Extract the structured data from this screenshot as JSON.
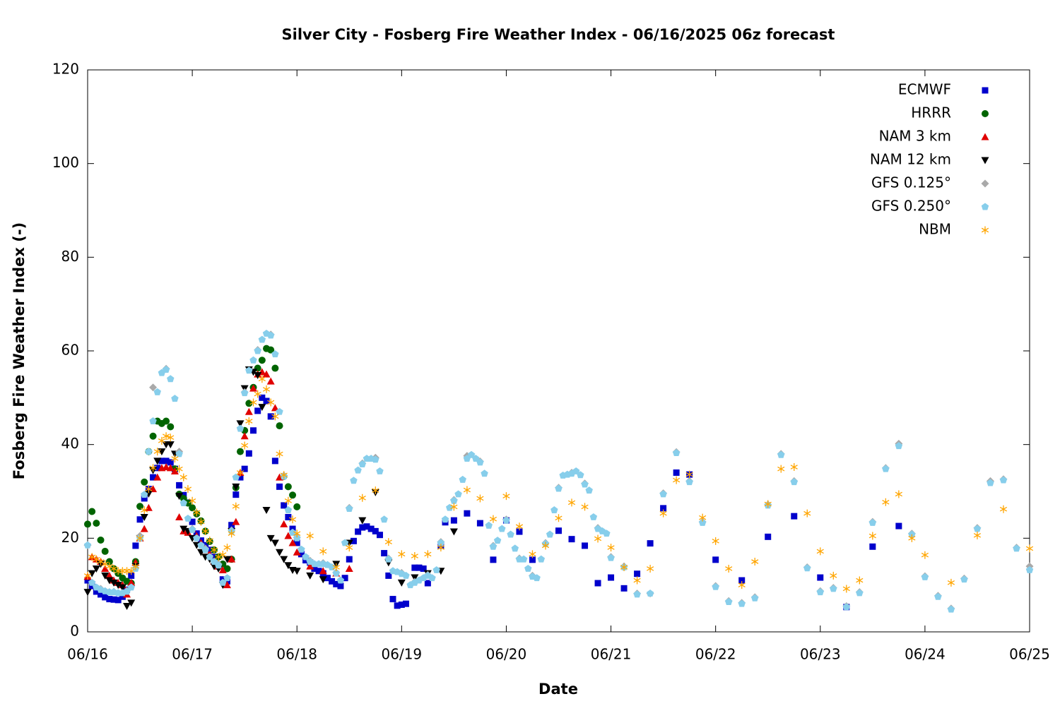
{
  "chart_data": {
    "type": "scatter",
    "title": "Silver City - Fosberg Fire Weather Index - 06/16/2025 06z forecast",
    "x_label": "Date",
    "y_label": "Fosberg Fire Weather Index (-)",
    "xlim": [
      0,
      216
    ],
    "ylim": [
      0,
      120
    ],
    "xticks": [
      {
        "value": 0,
        "label": "06/16"
      },
      {
        "value": 24,
        "label": "06/17"
      },
      {
        "value": 48,
        "label": "06/18"
      },
      {
        "value": 72,
        "label": "06/19"
      },
      {
        "value": 96,
        "label": "06/20"
      },
      {
        "value": 120,
        "label": "06/21"
      },
      {
        "value": 144,
        "label": "06/22"
      },
      {
        "value": 168,
        "label": "06/23"
      },
      {
        "value": 192,
        "label": "06/24"
      },
      {
        "value": 216,
        "label": "06/25"
      }
    ],
    "yticks": [
      0,
      20,
      40,
      60,
      80,
      100,
      120
    ],
    "legend": "top-right",
    "series": [
      {
        "name": "ECMWF",
        "color": "#0000cc",
        "marker": "square",
        "x": [
          0,
          1,
          2,
          3,
          4,
          5,
          6,
          7,
          8,
          9,
          10,
          11,
          12,
          13,
          14,
          15,
          16,
          17,
          18,
          19,
          20,
          21,
          22,
          23,
          24,
          25,
          26,
          27,
          28,
          29,
          30,
          31,
          32,
          33,
          34,
          35,
          36,
          37,
          38,
          39,
          40,
          41,
          42,
          43,
          44,
          45,
          46,
          47,
          48,
          49,
          50,
          51,
          52,
          53,
          54,
          55,
          56,
          57,
          58,
          59,
          60,
          61,
          62,
          63,
          64,
          65,
          66,
          67,
          68,
          69,
          70,
          71,
          72,
          73,
          75,
          76,
          77,
          78,
          81,
          82,
          84,
          87,
          90,
          93,
          96,
          99,
          102,
          108,
          111,
          114,
          117,
          120,
          123,
          126,
          129,
          132,
          135,
          138,
          144,
          150,
          156,
          162,
          168,
          174,
          180,
          186
        ],
        "values": [
          11,
          9.8,
          8.6,
          8,
          7.4,
          7,
          6.9,
          6.8,
          7.5,
          9,
          12,
          18.4,
          24,
          28.5,
          30.5,
          33,
          35,
          36.5,
          36.5,
          36.2,
          34.8,
          31.3,
          29.2,
          27.6,
          23.5,
          21,
          19.5,
          18.5,
          17.5,
          16,
          14,
          11.2,
          10.8,
          22.8,
          29.3,
          33,
          34.8,
          38.1,
          43,
          47.2,
          50,
          49.3,
          46,
          36.5,
          31,
          27,
          24.5,
          22,
          19,
          16.6,
          15.3,
          14.8,
          13.5,
          13,
          12.5,
          11.5,
          10.8,
          10.2,
          9.8,
          11.5,
          15.5,
          19.4,
          21.4,
          22.3,
          22.5,
          22,
          21.5,
          20.7,
          16.8,
          12,
          7,
          5.6,
          5.8,
          6,
          13.7,
          13.7,
          13.5,
          10.4,
          18.4,
          23.4,
          23.8,
          25.3,
          23.2,
          15.4,
          23.8,
          21.4,
          15.4,
          21.6,
          19.8,
          18.4,
          10.4,
          11.6,
          9.3,
          12.4,
          18.9,
          26.4,
          34,
          33.6,
          15.4,
          11,
          20.3,
          24.7,
          11.6,
          5.3,
          18.2,
          22.6
        ]
      },
      {
        "name": "HRRR",
        "color": "#006400",
        "marker": "circle",
        "x": [
          0,
          1,
          2,
          3,
          4,
          5,
          6,
          7,
          8,
          9,
          10,
          11,
          12,
          13,
          14,
          15,
          16,
          17,
          18,
          19,
          20,
          21,
          22,
          23,
          24,
          25,
          26,
          27,
          28,
          29,
          30,
          31,
          32,
          33,
          34,
          35,
          36,
          37,
          38,
          39,
          40,
          41,
          42,
          43,
          44,
          45,
          46,
          47,
          48
        ],
        "values": [
          23,
          25.7,
          23.2,
          19.6,
          17.2,
          15,
          13.5,
          12.5,
          11.5,
          10.8,
          10.4,
          15,
          26.8,
          32,
          38.5,
          41.8,
          45,
          44.5,
          45,
          43.8,
          34.8,
          29.4,
          28.5,
          27.5,
          26.5,
          25.2,
          23.7,
          21.5,
          19.3,
          17.5,
          16,
          14.5,
          13.5,
          15.5,
          30.8,
          38.5,
          43,
          48.8,
          52.2,
          56.3,
          58,
          60.5,
          60.2,
          56.3,
          44,
          33.2,
          31,
          29.2,
          26.7
        ]
      },
      {
        "name": "NAM 3 km",
        "color": "#e00000",
        "marker": "triangle",
        "x": [
          0,
          1,
          2,
          3,
          4,
          5,
          6,
          7,
          8,
          9,
          10,
          11,
          12,
          13,
          14,
          15,
          16,
          17,
          18,
          19,
          20,
          21,
          22,
          23,
          24,
          25,
          26,
          27,
          28,
          29,
          30,
          31,
          32,
          33,
          34,
          35,
          36,
          37,
          38,
          39,
          40,
          41,
          42,
          43,
          44,
          45,
          46,
          47,
          48,
          51,
          54,
          57,
          60
        ],
        "values": [
          11.8,
          16,
          15.5,
          15,
          13.5,
          12,
          11,
          10.5,
          10,
          8,
          10.5,
          14.8,
          20,
          22,
          26.5,
          30.5,
          33,
          35,
          35.2,
          35,
          34.3,
          24.5,
          21.5,
          21.2,
          22,
          20.5,
          19,
          17.5,
          16.5,
          15,
          14,
          13.2,
          10,
          15.5,
          23.5,
          34,
          41.8,
          47,
          52,
          55,
          55.5,
          55,
          53.5,
          47.8,
          33,
          23,
          20.5,
          19,
          17,
          14,
          13,
          12.5,
          13.5
        ]
      },
      {
        "name": "NAM 12 km",
        "color": "#000000",
        "marker": "triangle-down",
        "x": [
          0,
          1,
          2,
          3,
          4,
          5,
          6,
          7,
          8,
          9,
          10,
          11,
          12,
          13,
          14,
          15,
          16,
          17,
          18,
          19,
          20,
          21,
          22,
          23,
          24,
          25,
          26,
          27,
          28,
          29,
          30,
          31,
          32,
          33,
          34,
          35,
          36,
          37,
          38,
          39,
          40,
          41,
          42,
          43,
          44,
          45,
          46,
          47,
          48,
          51,
          54,
          57,
          60,
          63,
          66,
          69,
          72,
          75,
          78,
          81,
          84
        ],
        "values": [
          8.5,
          12.5,
          13.5,
          14.5,
          12,
          11,
          10.5,
          10,
          9.5,
          5.5,
          6.2,
          14,
          20,
          24.5,
          29.5,
          34.5,
          36.5,
          38.5,
          40,
          40,
          38,
          29,
          22,
          21.5,
          20,
          18.5,
          17,
          16,
          15.5,
          14,
          13.5,
          10,
          15.5,
          21.5,
          31,
          44.5,
          52,
          56,
          55.5,
          54.8,
          48,
          26,
          20,
          19,
          17,
          15.5,
          14.2,
          13.2,
          13,
          12,
          11.2,
          14.5,
          19,
          23.8,
          29.8,
          14.8,
          10.5,
          11.6,
          12.5,
          13,
          21.4
        ]
      },
      {
        "name": "GFS 0.125°",
        "color": "#a9a9a9",
        "marker": "diamond",
        "x": [
          0,
          3,
          6,
          9,
          12,
          15,
          18,
          21,
          24,
          27,
          30,
          33,
          36,
          39,
          42,
          45,
          48,
          51,
          54,
          57,
          60,
          63,
          66,
          69,
          72,
          75,
          78,
          81,
          84,
          87,
          90,
          93,
          96,
          99,
          102,
          105,
          108,
          111,
          114,
          117,
          120,
          123,
          126,
          129,
          132,
          135,
          138,
          141,
          144,
          147,
          150,
          153,
          156,
          159,
          162,
          165,
          168,
          171,
          174,
          177,
          180,
          183,
          186,
          189,
          192,
          195,
          198,
          201,
          204,
          207,
          210,
          213,
          216
        ],
        "values": [
          18.5,
          9.2,
          8.6,
          8.8,
          20.5,
          52.2,
          56.2,
          38.5,
          22,
          17.8,
          14.5,
          21.7,
          51.2,
          60.2,
          63.5,
          33.4,
          20.2,
          15.2,
          14.7,
          12.7,
          26.5,
          36,
          37.2,
          15.7,
          12.6,
          10.7,
          12.2,
          19.2,
          28.2,
          37.6,
          36.4,
          18.4,
          24,
          15.7,
          12,
          19,
          30.8,
          34,
          31.7,
          22.2,
          16,
          14,
          8.2,
          8.2,
          29.6,
          38.4,
          32.2,
          23.5,
          9.8,
          6.6,
          6.2,
          7.4,
          27.2,
          38,
          32.2,
          13.8,
          8.7,
          9.4,
          5.5,
          8.5,
          23.5,
          35,
          40.2,
          21,
          11.9,
          7.7,
          5,
          11.4,
          22.2,
          32.2,
          32.6,
          18,
          14
        ]
      },
      {
        "name": "GFS 0.250°",
        "color": "#87ceeb",
        "marker": "pentagon",
        "x": [
          0,
          1,
          2,
          3,
          4,
          5,
          6,
          7,
          8,
          9,
          10,
          11,
          12,
          13,
          14,
          15,
          16,
          17,
          18,
          19,
          20,
          21,
          22,
          23,
          24,
          25,
          26,
          27,
          28,
          29,
          30,
          31,
          32,
          33,
          34,
          35,
          36,
          37,
          38,
          39,
          40,
          41,
          42,
          43,
          44,
          45,
          46,
          47,
          48,
          49,
          50,
          51,
          52,
          53,
          54,
          55,
          56,
          57,
          58,
          59,
          60,
          61,
          62,
          63,
          64,
          65,
          66,
          67,
          68,
          69,
          70,
          71,
          72,
          73,
          74,
          75,
          76,
          77,
          78,
          79,
          80,
          81,
          82,
          83,
          84,
          85,
          86,
          87,
          88,
          89,
          90,
          91,
          92,
          93,
          94,
          95,
          96,
          97,
          98,
          99,
          100,
          101,
          102,
          103,
          104,
          105,
          106,
          107,
          108,
          109,
          110,
          111,
          112,
          113,
          114,
          115,
          116,
          117,
          118,
          119,
          120,
          123,
          126,
          129,
          132,
          135,
          138,
          141,
          144,
          147,
          150,
          153,
          156,
          159,
          162,
          165,
          168,
          171,
          174,
          177,
          180,
          183,
          186,
          189,
          192,
          195,
          198,
          201,
          204,
          207,
          210,
          213,
          216
        ],
        "values": [
          18.5,
          10.5,
          9.5,
          9,
          8.7,
          8.5,
          8.5,
          8.3,
          8.3,
          8.6,
          9.5,
          13.5,
          20,
          29.3,
          38.5,
          45,
          51.2,
          55.3,
          56,
          54,
          49.8,
          38,
          27.5,
          24.2,
          21.8,
          20,
          18.5,
          17.5,
          16,
          15,
          14.2,
          10.5,
          11.5,
          21.5,
          33,
          43.4,
          51,
          55.8,
          58,
          60,
          62.4,
          63.7,
          63.3,
          59.3,
          47,
          33.2,
          26,
          21.2,
          20,
          17.6,
          16,
          15,
          14.5,
          14.5,
          14.5,
          14.3,
          13.8,
          12.5,
          11,
          19,
          26.3,
          32.3,
          34.5,
          35.8,
          37,
          37,
          36.8,
          34.3,
          24,
          15.5,
          13,
          12.8,
          12.4,
          12,
          10,
          10.5,
          11,
          11.5,
          12,
          11.5,
          13.2,
          19,
          24,
          26.5,
          28,
          29.4,
          32.5,
          37,
          37.8,
          37,
          36.2,
          33.8,
          22.7,
          18.2,
          19.5,
          22,
          23.8,
          20.8,
          17.8,
          15.5,
          15.5,
          13.5,
          11.8,
          11.5,
          15.5,
          18.8,
          20.8,
          26,
          30.6,
          33.4,
          33.6,
          33.8,
          34.3,
          33.5,
          31.5,
          30.2,
          24.5,
          22,
          21.5,
          21,
          15.8,
          13.8,
          8,
          8.2,
          29.4,
          38.2,
          32,
          23.3,
          9.6,
          6.4,
          6,
          7.2,
          27,
          37.8,
          32,
          13.6,
          8.5,
          9.2,
          5.3,
          8.3,
          23.3,
          34.8,
          39.7,
          20.8,
          11.7,
          7.5,
          4.8,
          11.2,
          22,
          31.8,
          32.4,
          17.8,
          13.2
        ]
      },
      {
        "name": "NBM",
        "color": "#ffa500",
        "marker": "asterisk",
        "x": [
          0,
          1,
          2,
          3,
          4,
          5,
          6,
          7,
          8,
          9,
          10,
          11,
          12,
          13,
          14,
          15,
          16,
          17,
          18,
          19,
          20,
          21,
          22,
          23,
          24,
          25,
          26,
          27,
          28,
          29,
          30,
          31,
          32,
          33,
          34,
          35,
          36,
          37,
          38,
          39,
          40,
          41,
          42,
          43,
          44,
          45,
          46,
          47,
          48,
          51,
          54,
          57,
          60,
          63,
          66,
          69,
          72,
          75,
          78,
          81,
          84,
          87,
          90,
          93,
          96,
          99,
          102,
          105,
          108,
          111,
          114,
          117,
          120,
          123,
          126,
          129,
          132,
          135,
          138,
          141,
          144,
          147,
          150,
          153,
          156,
          159,
          162,
          165,
          168,
          171,
          174,
          177,
          180,
          183,
          186,
          189,
          192,
          198,
          204,
          210,
          216
        ],
        "values": [
          12,
          16,
          15.5,
          15,
          14.5,
          14,
          13.5,
          13,
          13,
          13,
          13,
          14,
          20,
          26,
          30.5,
          35,
          38.5,
          40.8,
          41.8,
          41.5,
          37,
          34.8,
          33,
          30.5,
          28,
          25.5,
          23.5,
          21.5,
          19.5,
          17.5,
          16,
          16.5,
          18,
          21,
          26.8,
          34,
          39.8,
          45,
          49,
          50.8,
          54,
          51.8,
          49,
          46,
          38,
          33.5,
          28,
          24,
          21,
          20.5,
          17.2,
          13.8,
          18,
          28.6,
          30.2,
          19.2,
          16.6,
          16.2,
          16.6,
          18,
          26.7,
          30.3,
          28.5,
          24.1,
          29,
          22.5,
          16.6,
          18.4,
          24.3,
          27.6,
          26.7,
          19.9,
          18,
          13.8,
          11,
          13.5,
          25.3,
          32.4,
          33.6,
          24.4,
          19.4,
          13.5,
          10,
          15,
          27.3,
          34.8,
          35.2,
          25.3,
          17.2,
          12,
          9.2,
          11,
          20.5,
          27.7,
          29.4,
          20,
          16.4,
          10.5,
          20.6,
          26.2,
          17.8
        ]
      }
    ]
  }
}
